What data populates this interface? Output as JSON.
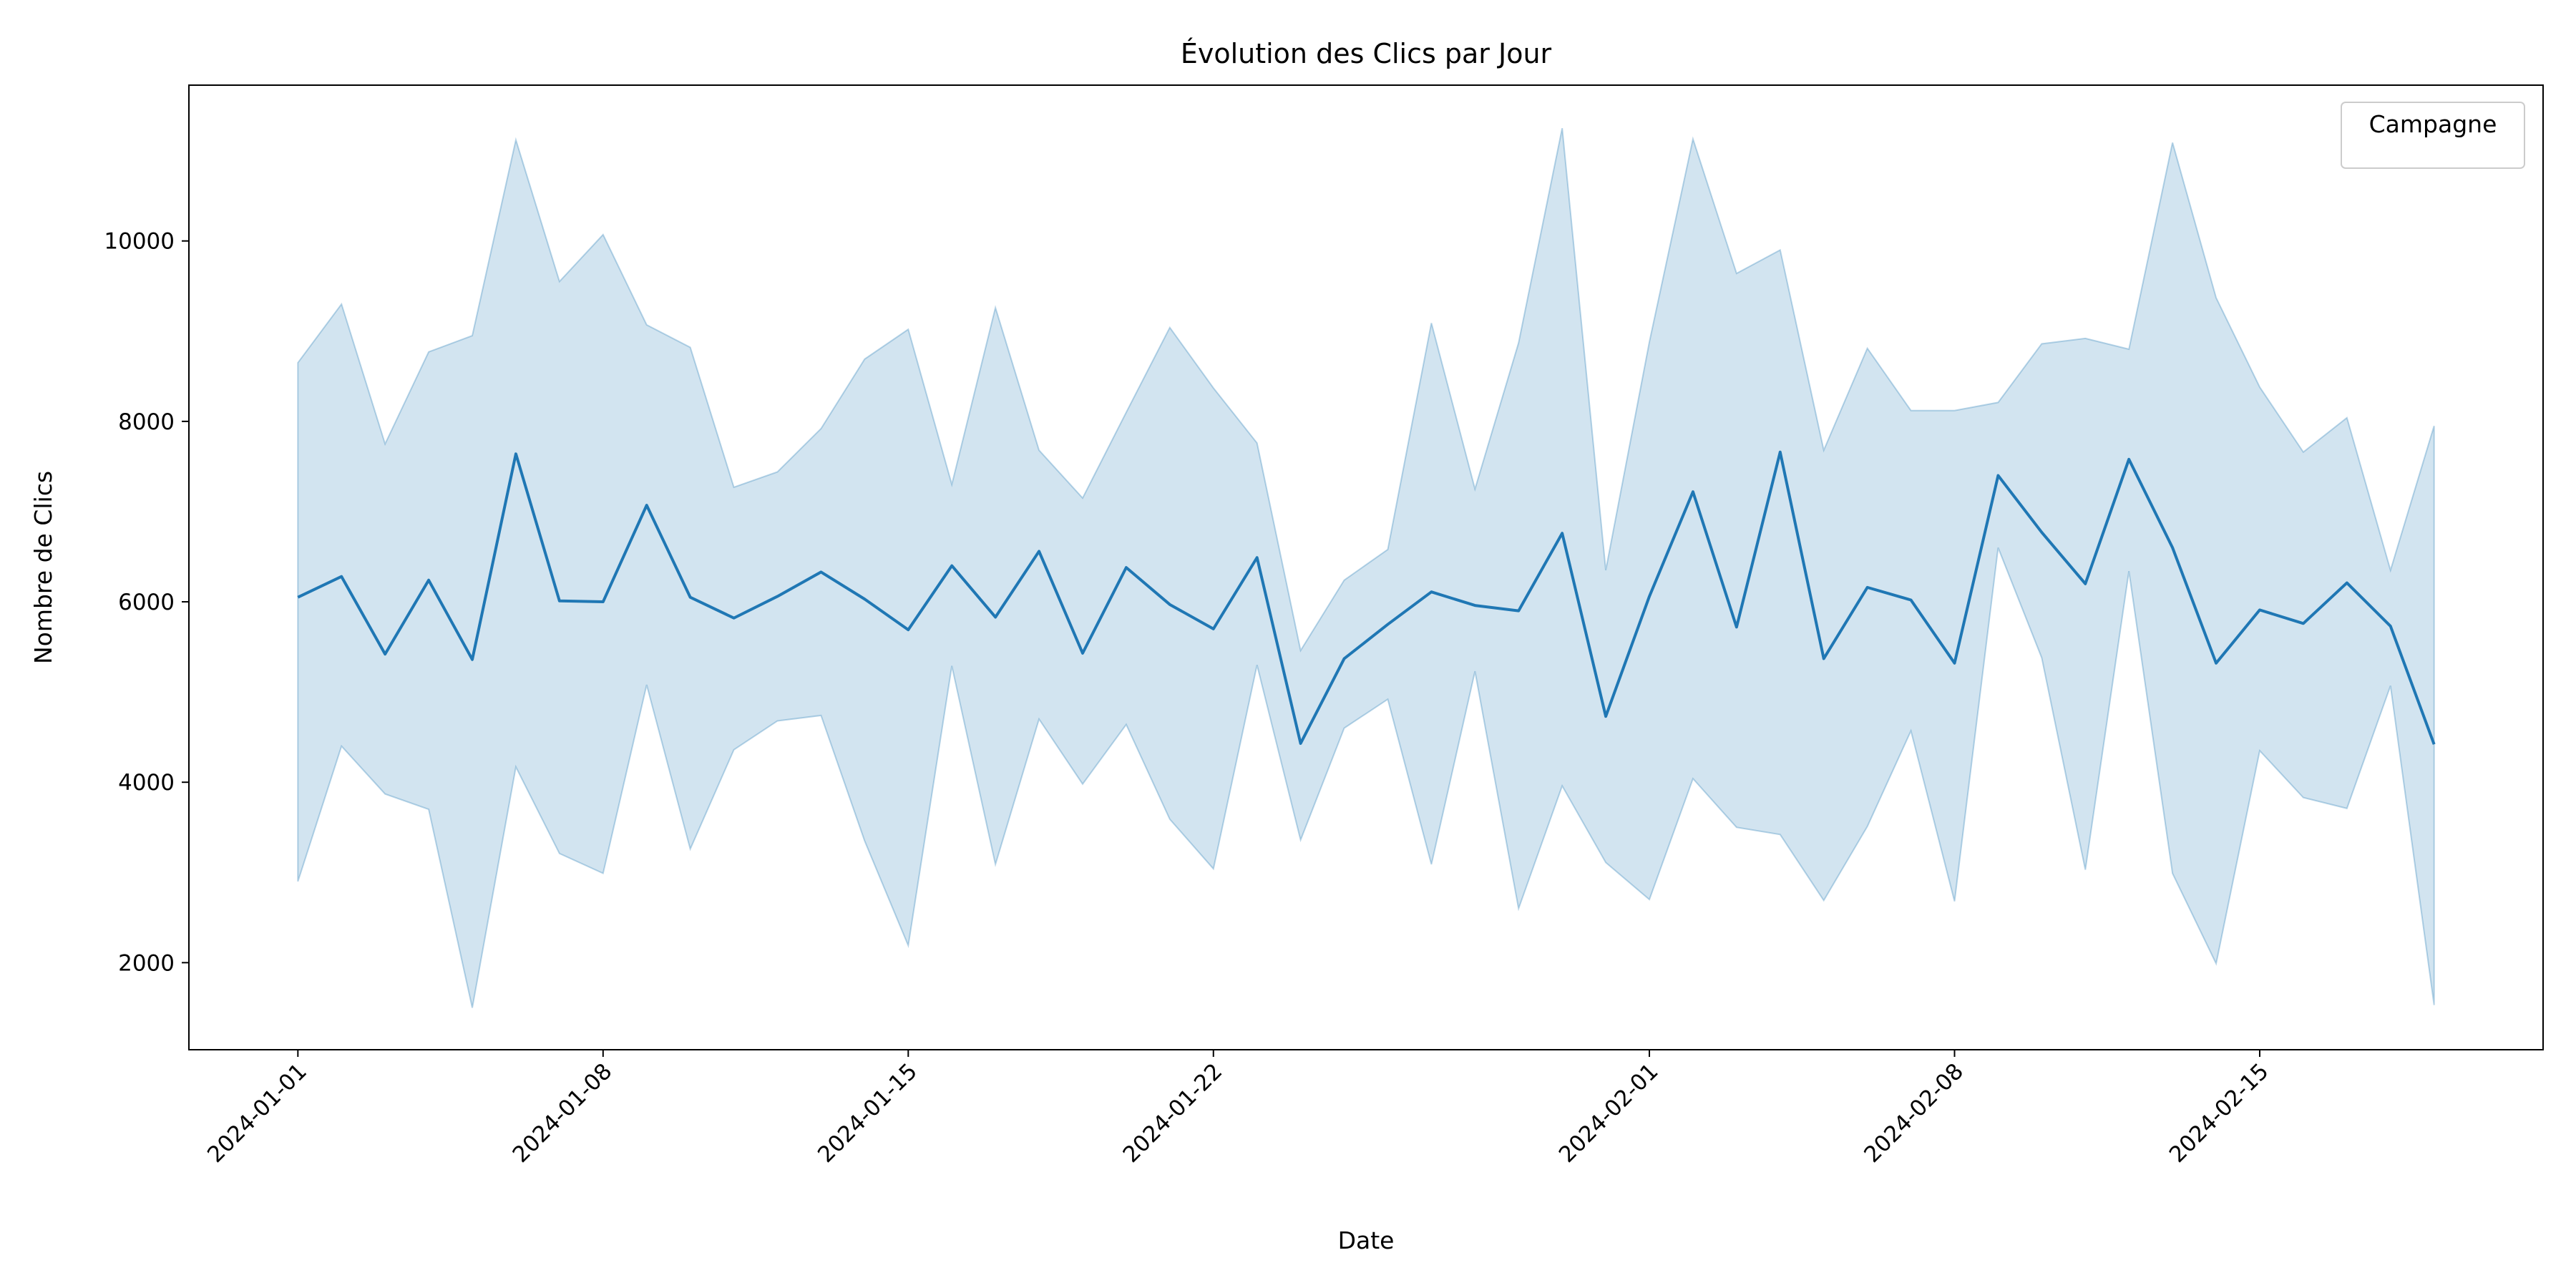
{
  "chart_data": {
    "type": "line",
    "title": "Évolution des Clics par Jour",
    "xlabel": "Date",
    "ylabel": "Nombre de Clics",
    "legend_title": "Campagne",
    "legend_position": "upper right",
    "x": [
      "2024-01-01",
      "2024-01-02",
      "2024-01-03",
      "2024-01-04",
      "2024-01-05",
      "2024-01-06",
      "2024-01-07",
      "2024-01-08",
      "2024-01-09",
      "2024-01-10",
      "2024-01-11",
      "2024-01-12",
      "2024-01-13",
      "2024-01-14",
      "2024-01-15",
      "2024-01-16",
      "2024-01-17",
      "2024-01-18",
      "2024-01-19",
      "2024-01-20",
      "2024-01-21",
      "2024-01-22",
      "2024-01-23",
      "2024-01-24",
      "2024-01-25",
      "2024-01-26",
      "2024-01-27",
      "2024-01-28",
      "2024-01-29",
      "2024-01-30",
      "2024-01-31",
      "2024-02-01",
      "2024-02-02",
      "2024-02-03",
      "2024-02-04",
      "2024-02-05",
      "2024-02-06",
      "2024-02-07",
      "2024-02-08",
      "2024-02-09",
      "2024-02-10",
      "2024-02-11",
      "2024-02-12",
      "2024-02-13",
      "2024-02-14",
      "2024-02-15",
      "2024-02-16",
      "2024-02-17",
      "2024-02-18",
      "2024-02-19"
    ],
    "series": [
      {
        "color": "#1f77b4",
        "values": [
          6050,
          6280,
          5420,
          6240,
          5360,
          7640,
          6010,
          6000,
          7070,
          6050,
          5820,
          6060,
          6330,
          6030,
          5690,
          6400,
          5830,
          6560,
          5430,
          6380,
          5970,
          5700,
          6490,
          4430,
          5370,
          5750,
          6110,
          5960,
          5900,
          6760,
          4730,
          6060,
          7220,
          5720,
          7660,
          5370,
          6160,
          6020,
          5320,
          7400,
          6770,
          6200,
          7580,
          6600,
          5320,
          5910,
          5760,
          6210,
          5730,
          4420
        ],
        "upper": [
          8650,
          9300,
          7750,
          8770,
          8950,
          11120,
          9550,
          10070,
          9070,
          8820,
          7270,
          7440,
          7920,
          8690,
          9020,
          7300,
          9260,
          7680,
          7150,
          8100,
          9040,
          8370,
          7760,
          5460,
          6240,
          6580,
          9090,
          7250,
          8870,
          11250,
          6350,
          8880,
          11130,
          9640,
          9900,
          7680,
          8810,
          8120,
          8120,
          8210,
          8860,
          8920,
          8800,
          11090,
          9370,
          8380,
          7660,
          8040,
          6350,
          7950
        ],
        "lower": [
          2900,
          4400,
          3870,
          3700,
          1500,
          4170,
          3210,
          2990,
          5080,
          3260,
          4360,
          4680,
          4740,
          3350,
          2190,
          5290,
          3090,
          4700,
          3980,
          4640,
          3590,
          3040,
          5300,
          3360,
          4600,
          4920,
          3090,
          5230,
          2600,
          3960,
          3110,
          2700,
          4040,
          3500,
          3420,
          2690,
          3510,
          4570,
          2680,
          6600,
          5380,
          3030,
          6340,
          2990,
          1990,
          4350,
          3830,
          3710,
          5070,
          1530
        ],
        "band_opacity": 0.2
      }
    ],
    "xlim": [
      "2023-12-29T12:00",
      "2024-02-21T12:00"
    ],
    "xticks": [
      "2024-01-01",
      "2024-01-08",
      "2024-01-15",
      "2024-01-22",
      "2024-02-01",
      "2024-02-08",
      "2024-02-15"
    ],
    "ylim": [
      1035,
      11727
    ],
    "yticks": [
      2000,
      4000,
      6000,
      8000,
      10000
    ]
  }
}
